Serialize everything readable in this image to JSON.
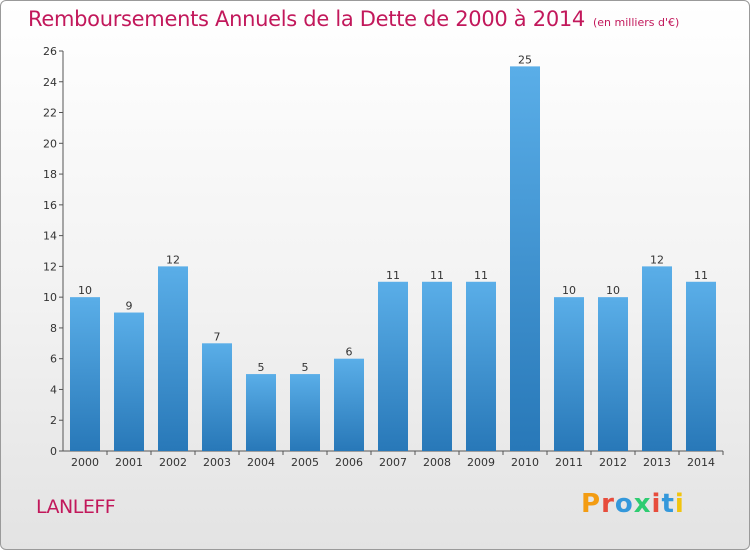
{
  "title": "Remboursements Annuels de la Dette de 2000 à 2014",
  "unit_note": "(en milliers d'€)",
  "commune": "LANLEFF",
  "logo": {
    "text": "Proxiti",
    "colors": [
      "#f39c12",
      "#e74c3c",
      "#3498db",
      "#2ecc71",
      "#e74c3c",
      "#3498db",
      "#f1c40f"
    ]
  },
  "colors": {
    "title": "#c2185b",
    "bar_top": "#5aaee8",
    "bar_bottom": "#2878b8"
  },
  "chart_data": {
    "type": "bar",
    "categories": [
      "2000",
      "2001",
      "2002",
      "2003",
      "2004",
      "2005",
      "2006",
      "2007",
      "2008",
      "2009",
      "2010",
      "2011",
      "2012",
      "2013",
      "2014"
    ],
    "values": [
      10,
      9,
      12,
      7,
      5,
      5,
      6,
      11,
      11,
      11,
      25,
      10,
      10,
      12,
      11
    ],
    "ylim": [
      0,
      26
    ],
    "yticks": [
      0,
      2,
      4,
      6,
      8,
      10,
      12,
      14,
      16,
      18,
      20,
      22,
      24,
      26
    ],
    "grid": false,
    "data_labels": true
  }
}
